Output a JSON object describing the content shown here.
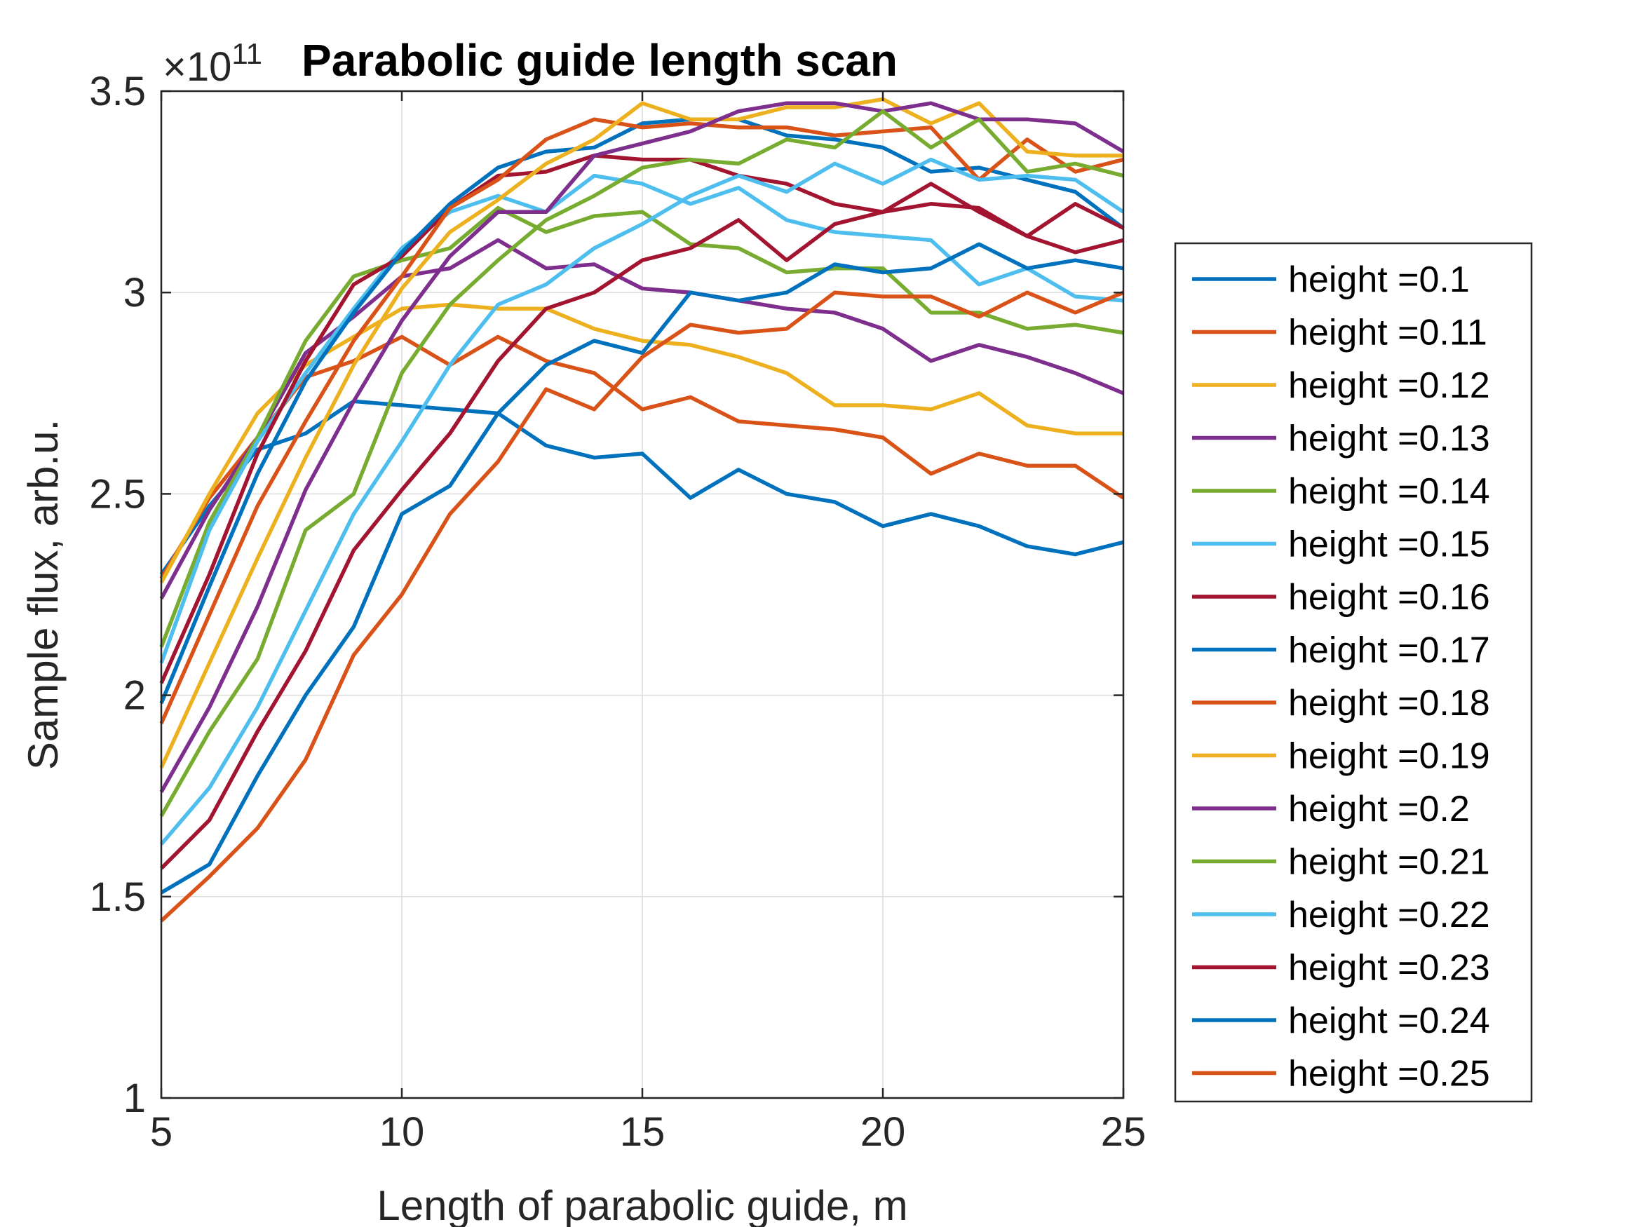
{
  "chart_data": {
    "type": "line",
    "title": "Parabolic guide length scan",
    "xlabel": "Length of parabolic guide, m",
    "ylabel": "Sample flux, arb.u.",
    "y_exponent_label": "×10",
    "y_exponent": "11",
    "xlim": [
      5,
      25
    ],
    "ylim": [
      1,
      3.5
    ],
    "xticks": [
      5,
      10,
      15,
      20,
      25
    ],
    "yticks": [
      1,
      1.5,
      2,
      2.5,
      3,
      3.5
    ],
    "xtick_labels": [
      "5",
      "10",
      "15",
      "20",
      "25"
    ],
    "ytick_labels": [
      "1",
      "1.5",
      "2",
      "2.5",
      "3",
      "3.5"
    ],
    "grid": true,
    "legend_position": "outside-right",
    "x": [
      5,
      6,
      7,
      8,
      9,
      10,
      11,
      12,
      13,
      14,
      15,
      16,
      17,
      18,
      19,
      20,
      21,
      22,
      23,
      24,
      25
    ],
    "series": [
      {
        "name": "height =0.1",
        "color": "#0072BD",
        "values": [
          2.3,
          2.47,
          2.61,
          2.65,
          2.73,
          2.72,
          2.71,
          2.7,
          2.62,
          2.59,
          2.6,
          2.49,
          2.56,
          2.5,
          2.48,
          2.42,
          2.45,
          2.42,
          2.37,
          2.35,
          2.38
        ]
      },
      {
        "name": "height =0.11",
        "color": "#D95319",
        "values": [
          2.29,
          2.49,
          2.64,
          2.79,
          2.83,
          2.89,
          2.82,
          2.89,
          2.83,
          2.8,
          2.71,
          2.74,
          2.68,
          2.67,
          2.66,
          2.64,
          2.55,
          2.6,
          2.57,
          2.57,
          2.49
        ]
      },
      {
        "name": "height =0.12",
        "color": "#EDB120",
        "values": [
          2.28,
          2.5,
          2.7,
          2.82,
          2.89,
          2.96,
          2.97,
          2.96,
          2.96,
          2.91,
          2.88,
          2.87,
          2.84,
          2.8,
          2.72,
          2.72,
          2.71,
          2.75,
          2.67,
          2.65,
          2.65
        ]
      },
      {
        "name": "height =0.13",
        "color": "#7E2F8E",
        "values": [
          2.24,
          2.46,
          2.64,
          2.85,
          2.94,
          3.04,
          3.06,
          3.13,
          3.06,
          3.07,
          3.01,
          3.0,
          2.98,
          2.96,
          2.95,
          2.91,
          2.83,
          2.87,
          2.84,
          2.8,
          2.75
        ]
      },
      {
        "name": "height =0.14",
        "color": "#77AC30",
        "values": [
          2.12,
          2.43,
          2.64,
          2.88,
          3.04,
          3.08,
          3.11,
          3.21,
          3.15,
          3.19,
          3.2,
          3.12,
          3.11,
          3.05,
          3.06,
          3.06,
          2.95,
          2.95,
          2.91,
          2.92,
          2.9
        ]
      },
      {
        "name": "height =0.15",
        "color": "#4DBEEE",
        "values": [
          2.08,
          2.41,
          2.63,
          2.8,
          2.96,
          3.11,
          3.2,
          3.24,
          3.2,
          3.29,
          3.27,
          3.22,
          3.26,
          3.18,
          3.15,
          3.14,
          3.13,
          3.02,
          3.06,
          2.99,
          2.98
        ]
      },
      {
        "name": "height =0.16",
        "color": "#A2142F",
        "values": [
          2.03,
          2.3,
          2.6,
          2.83,
          3.02,
          3.09,
          3.21,
          3.29,
          3.3,
          3.34,
          3.33,
          3.33,
          3.29,
          3.27,
          3.22,
          3.2,
          3.22,
          3.21,
          3.14,
          3.1,
          3.13
        ]
      },
      {
        "name": "height =0.17",
        "color": "#0072BD",
        "values": [
          1.98,
          2.27,
          2.55,
          2.78,
          2.95,
          3.1,
          3.22,
          3.31,
          3.35,
          3.36,
          3.42,
          3.43,
          3.43,
          3.39,
          3.38,
          3.36,
          3.3,
          3.31,
          3.28,
          3.25,
          3.16
        ]
      },
      {
        "name": "height =0.18",
        "color": "#D95319",
        "values": [
          1.93,
          2.2,
          2.47,
          2.68,
          2.88,
          3.04,
          3.21,
          3.28,
          3.38,
          3.43,
          3.41,
          3.42,
          3.41,
          3.41,
          3.39,
          3.4,
          3.41,
          3.28,
          3.38,
          3.3,
          3.33
        ]
      },
      {
        "name": "height =0.19",
        "color": "#EDB120",
        "values": [
          1.82,
          2.08,
          2.34,
          2.59,
          2.82,
          3.01,
          3.15,
          3.23,
          3.32,
          3.38,
          3.47,
          3.43,
          3.43,
          3.46,
          3.46,
          3.48,
          3.42,
          3.47,
          3.35,
          3.34,
          3.34
        ]
      },
      {
        "name": "height =0.2",
        "color": "#7E2F8E",
        "values": [
          1.76,
          1.97,
          2.22,
          2.51,
          2.73,
          2.93,
          3.09,
          3.2,
          3.2,
          3.34,
          3.37,
          3.4,
          3.45,
          3.47,
          3.47,
          3.45,
          3.47,
          3.43,
          3.43,
          3.42,
          3.35
        ]
      },
      {
        "name": "height =0.21",
        "color": "#77AC30",
        "values": [
          1.7,
          1.91,
          2.09,
          2.41,
          2.5,
          2.8,
          2.97,
          3.08,
          3.18,
          3.24,
          3.31,
          3.33,
          3.32,
          3.38,
          3.36,
          3.45,
          3.36,
          3.43,
          3.3,
          3.32,
          3.29
        ]
      },
      {
        "name": "height =0.22",
        "color": "#4DBEEE",
        "values": [
          1.63,
          1.77,
          1.97,
          2.21,
          2.45,
          2.63,
          2.82,
          2.97,
          3.02,
          3.11,
          3.17,
          3.24,
          3.29,
          3.25,
          3.32,
          3.27,
          3.33,
          3.28,
          3.29,
          3.28,
          3.2
        ]
      },
      {
        "name": "height =0.23",
        "color": "#A2142F",
        "values": [
          1.57,
          1.69,
          1.91,
          2.11,
          2.36,
          2.51,
          2.65,
          2.83,
          2.96,
          3.0,
          3.08,
          3.11,
          3.18,
          3.08,
          3.17,
          3.2,
          3.27,
          3.2,
          3.14,
          3.22,
          3.16
        ]
      },
      {
        "name": "height =0.24",
        "color": "#0072BD",
        "values": [
          1.51,
          1.58,
          1.8,
          2.0,
          2.17,
          2.45,
          2.52,
          2.7,
          2.82,
          2.88,
          2.85,
          3.0,
          2.98,
          3.0,
          3.07,
          3.05,
          3.06,
          3.12,
          3.06,
          3.08,
          3.06
        ]
      },
      {
        "name": "height =0.25",
        "color": "#D95319",
        "values": [
          1.44,
          1.55,
          1.67,
          1.84,
          2.1,
          2.25,
          2.45,
          2.58,
          2.76,
          2.71,
          2.84,
          2.92,
          2.9,
          2.91,
          3.0,
          2.99,
          2.99,
          2.94,
          3.0,
          2.95,
          3.0
        ]
      }
    ]
  }
}
